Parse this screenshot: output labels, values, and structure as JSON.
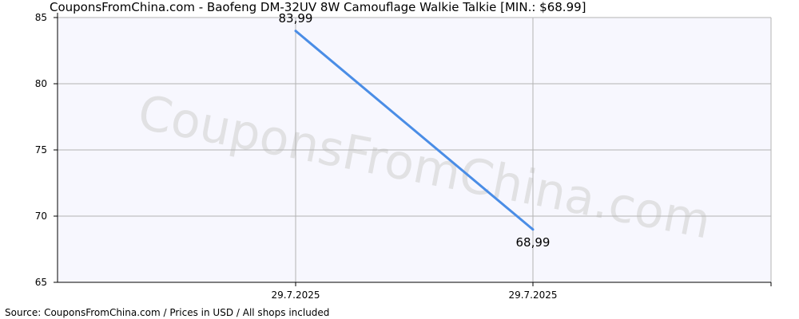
{
  "title": "CouponsFromChina.com - Baofeng DM-32UV 8W Camouflage Walkie Talkie [MIN.: $68.99]",
  "footer": "Source: CouponsFromChina.com / Prices in USD / All shops included",
  "watermark": "CouponsFromChina.com",
  "colors": {
    "line": "#4a8de6",
    "plot_bg": "#f7f7fe",
    "grid": "#b3b3b3",
    "axis": "#000000"
  },
  "chart_data": {
    "type": "line",
    "title": "CouponsFromChina.com - Baofeng DM-32UV 8W Camouflage Walkie Talkie [MIN.: $68.99]",
    "xlabel": "",
    "ylabel": "",
    "x": [
      "29.7.2025",
      "29.7.2025"
    ],
    "series": [
      {
        "values": [
          83.99,
          68.99
        ],
        "labels": [
          "83,99",
          "68,99"
        ]
      }
    ],
    "ylim": [
      65,
      85
    ],
    "yticks": [
      65,
      70,
      75,
      80,
      85
    ],
    "grid": true,
    "legend": "none"
  }
}
